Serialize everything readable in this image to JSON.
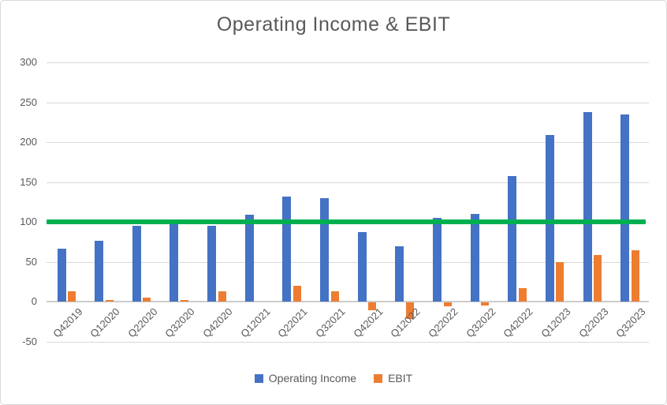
{
  "title": "Operating Income & EBIT",
  "colors": {
    "operating_income": "#4472C4",
    "ebit": "#ED7D31",
    "target_line": "#00B050",
    "text": "#595959",
    "gridline": "#D9D9D9",
    "axis_line": "#CDCDCD",
    "background": "#FFFFFF",
    "border": "#D9D9D9"
  },
  "legend": {
    "items": [
      {
        "label": "Operating Income",
        "color": "#4472C4"
      },
      {
        "label": "EBIT",
        "color": "#ED7D31"
      }
    ],
    "position": "bottom"
  },
  "chart_data": {
    "type": "bar",
    "title": "Operating Income & EBIT",
    "categories": [
      "Q42019",
      "Q12020",
      "Q22020",
      "Q32020",
      "Q42020",
      "Q12021",
      "Q22021",
      "Q32021",
      "Q42021",
      "Q12022",
      "Q22022",
      "Q32022",
      "Q42022",
      "Q12023",
      "Q22023",
      "Q32023"
    ],
    "series": [
      {
        "name": "Operating Income",
        "color": "#4472C4",
        "values": [
          66,
          76,
          95,
          98,
          95,
          109,
          132,
          130,
          87,
          69,
          105,
          110,
          157,
          209,
          238,
          235
        ]
      },
      {
        "name": "EBIT",
        "color": "#ED7D31",
        "values": [
          13,
          2,
          5,
          2,
          13,
          0,
          20,
          13,
          -10,
          -21,
          -5,
          -4,
          17,
          50,
          58,
          64
        ]
      }
    ],
    "reference_line": {
      "value": 100,
      "color": "#00B050"
    },
    "y_ticks": [
      300,
      250,
      200,
      150,
      100,
      50,
      0,
      -50
    ],
    "ylim": [
      -50,
      300
    ],
    "xlabel": "",
    "ylabel": "",
    "grid": true,
    "x_label_rotation": 45,
    "legend_position": "bottom"
  }
}
